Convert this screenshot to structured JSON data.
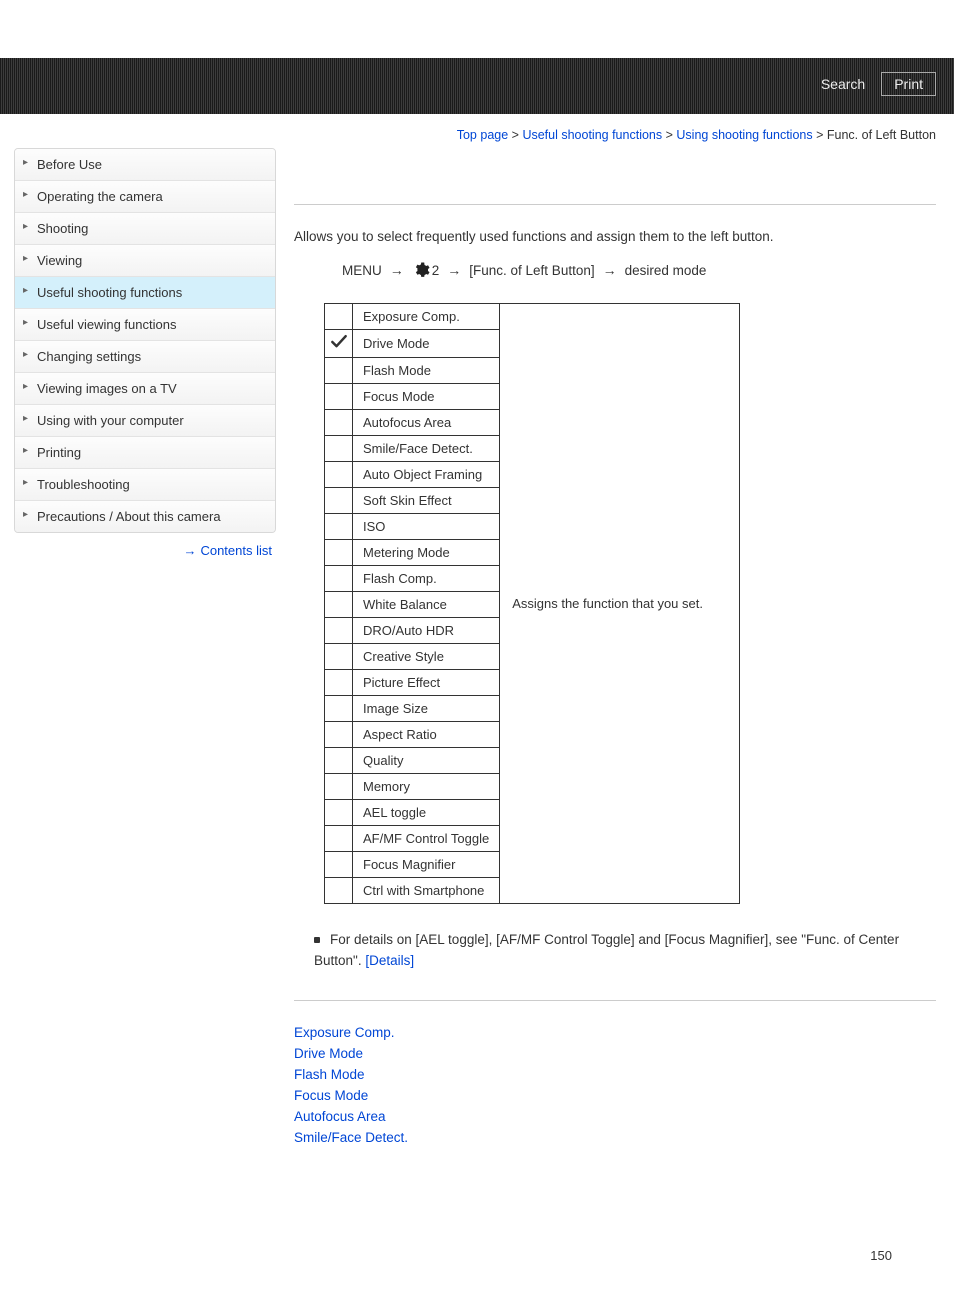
{
  "topbar": {
    "search_label": "Search",
    "print_label": "Print"
  },
  "breadcrumb": {
    "items": [
      "Top page",
      "Useful shooting functions",
      "Using shooting functions"
    ],
    "current": "Func. of Left Button",
    "sep": ">"
  },
  "sidebar": {
    "items": [
      {
        "label": "Before Use",
        "active": false
      },
      {
        "label": "Operating the camera",
        "active": false
      },
      {
        "label": "Shooting",
        "active": false
      },
      {
        "label": "Viewing",
        "active": false
      },
      {
        "label": "Useful shooting functions",
        "active": true
      },
      {
        "label": "Useful viewing functions",
        "active": false
      },
      {
        "label": "Changing settings",
        "active": false
      },
      {
        "label": "Viewing images on a TV",
        "active": false
      },
      {
        "label": "Using with your computer",
        "active": false
      },
      {
        "label": "Printing",
        "active": false
      },
      {
        "label": "Troubleshooting",
        "active": false
      },
      {
        "label": "Precautions / About this camera",
        "active": false
      }
    ],
    "contents_list_label": "Contents list"
  },
  "main": {
    "intro": "Allows you to select frequently used functions and assign them to the left button.",
    "path": {
      "menu": "MENU",
      "gear_num": "2",
      "bracket": "[Func. of Left Button]",
      "desired": "desired mode"
    },
    "table": {
      "rows": [
        {
          "label": "Exposure Comp.",
          "checked": false
        },
        {
          "label": "Drive Mode",
          "checked": true
        },
        {
          "label": "Flash Mode",
          "checked": false
        },
        {
          "label": "Focus Mode",
          "checked": false
        },
        {
          "label": "Autofocus Area",
          "checked": false
        },
        {
          "label": "Smile/Face Detect.",
          "checked": false
        },
        {
          "label": "Auto Object Framing",
          "checked": false
        },
        {
          "label": "Soft Skin Effect",
          "checked": false
        },
        {
          "label": "ISO",
          "checked": false
        },
        {
          "label": "Metering Mode",
          "checked": false
        },
        {
          "label": "Flash Comp.",
          "checked": false
        },
        {
          "label": "White Balance",
          "checked": false
        },
        {
          "label": "DRO/Auto HDR",
          "checked": false
        },
        {
          "label": "Creative Style",
          "checked": false
        },
        {
          "label": "Picture Effect",
          "checked": false
        },
        {
          "label": "Image Size",
          "checked": false
        },
        {
          "label": "Aspect Ratio",
          "checked": false
        },
        {
          "label": "Quality",
          "checked": false
        },
        {
          "label": "Memory",
          "checked": false
        },
        {
          "label": "AEL toggle",
          "checked": false
        },
        {
          "label": "AF/MF Control Toggle",
          "checked": false
        },
        {
          "label": "Focus Magnifier",
          "checked": false
        },
        {
          "label": "Ctrl with Smartphone",
          "checked": false
        }
      ],
      "description": "Assigns the function that you set."
    },
    "note_text": "For details on [AEL toggle], [AF/MF Control Toggle] and [Focus Magnifier], see \"Func. of Center Button\". ",
    "details_label": "[Details]",
    "related": [
      "Exposure Comp.",
      "Drive Mode",
      "Flash Mode",
      "Focus Mode",
      "Autofocus Area",
      "Smile/Face Detect."
    ]
  },
  "page_number": "150"
}
